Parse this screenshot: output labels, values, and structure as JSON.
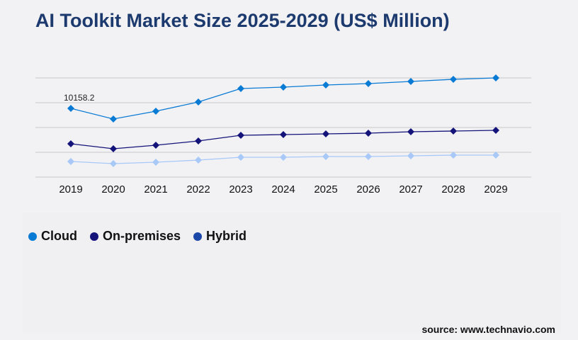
{
  "title": "AI Toolkit Market Size 2025-2029 (US$ Million)",
  "source": "source: www.technavio.com",
  "chart_data": {
    "type": "line",
    "title": "AI Toolkit Market Size 2025-2029 (US$ Million)",
    "categories": [
      "2019",
      "2020",
      "2021",
      "2022",
      "2023",
      "2024",
      "2025",
      "2026",
      "2027",
      "2028",
      "2029"
    ],
    "ylim": [
      0,
      14661
    ],
    "grid": true,
    "legend_position": "bottom-left",
    "series": [
      {
        "name": "Cloud",
        "color": "#0a7bd4",
        "legend_color": "#0a7bd4",
        "values": [
          10158.2,
          8587,
          9739,
          11100,
          13090,
          13300,
          13614,
          13823,
          14137,
          14451,
          14661
        ]
      },
      {
        "name": "On-premises",
        "color": "#14137a",
        "legend_color": "#14137a",
        "values": [
          4922,
          4189,
          4712,
          5341,
          6179,
          6283,
          6388,
          6493,
          6702,
          6807,
          6912
        ]
      },
      {
        "name": "Hybrid",
        "color": "#a8c8f8",
        "legend_color": "#1a47a8",
        "values": [
          2304,
          1990,
          2199,
          2513,
          2932,
          2932,
          3037,
          3037,
          3142,
          3246,
          3246
        ]
      }
    ],
    "annotations": [
      {
        "series": "Cloud",
        "category": "2019",
        "text": "10158.2"
      }
    ]
  }
}
